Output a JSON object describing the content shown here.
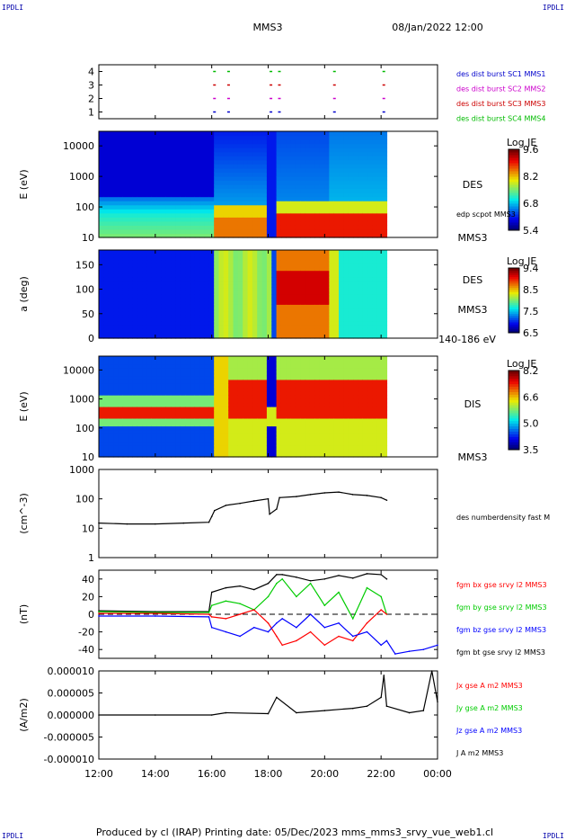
{
  "header": {
    "corner_left": "IPDLI",
    "corner_right": "IPDLI",
    "spacecraft": "MMS3",
    "date": "08/Jan/2022 12:00"
  },
  "footer": {
    "corner_left": "IPDLI",
    "corner_right": "IPDLI",
    "text": "Produced by cl (IRAP)   Printing date: 05/Dec/2023   mms_mms3_srvy_vue_web1.cl"
  },
  "chart_data": [
    {
      "type": "table",
      "name": "burst-availability",
      "ticks": [
        "1",
        "2",
        "3",
        "4"
      ],
      "legend": [
        {
          "text": "des dist burst SC1 MMS1",
          "color": "#0000cc"
        },
        {
          "text": "des dist burst SC2 MMS2",
          "color": "#cc00cc"
        },
        {
          "text": "des dist burst SC3 MMS3",
          "color": "#cc0000"
        },
        {
          "text": "des dist burst SC4 MMS4",
          "color": "#00bb00"
        }
      ],
      "burst_times_hours": [
        16.05,
        16.55,
        18.05,
        18.35,
        20.3,
        22.05
      ]
    },
    {
      "type": "heatmap",
      "name": "DES energy spectrogram",
      "ylabel": "E (eV)",
      "scale": "log",
      "ylim": [
        10,
        30000
      ],
      "yticks": [
        "10",
        "100",
        "1000",
        "10000"
      ],
      "yticks_values": [
        10,
        100,
        1000,
        10000
      ],
      "side_label": "DES",
      "side_label2": "edp scpot MMS3",
      "bottom_label": "MMS3",
      "colorbar": {
        "title": "Log JE",
        "ticks": [
          "9.6",
          "8.2",
          "6.8",
          "5.4"
        ],
        "range": [
          5.4,
          9.6
        ]
      }
    },
    {
      "type": "heatmap",
      "name": "DES pitch angle",
      "ylabel": "a (deg)",
      "ylim": [
        0,
        180
      ],
      "yticks": [
        "0",
        "50",
        "100",
        "150"
      ],
      "yticks_values": [
        0,
        50,
        100,
        150
      ],
      "side_label": "DES",
      "side_label2": "MMS3",
      "bottom_label": "140-186 eV",
      "colorbar": {
        "title": "Log JE",
        "ticks": [
          "9.4",
          "8.5",
          "7.5",
          "6.5"
        ],
        "range": [
          6.5,
          9.4
        ]
      }
    },
    {
      "type": "heatmap",
      "name": "DIS energy spectrogram",
      "ylabel": "E (eV)",
      "scale": "log",
      "ylim": [
        10,
        30000
      ],
      "yticks": [
        "10",
        "100",
        "1000",
        "10000"
      ],
      "yticks_values": [
        10,
        100,
        1000,
        10000
      ],
      "side_label": "DIS",
      "bottom_label": "MMS3",
      "colorbar": {
        "title": "Log JE",
        "ticks": [
          "8.2",
          "6.6",
          "5.0",
          "3.5"
        ],
        "range": [
          3.5,
          8.2
        ]
      }
    },
    {
      "type": "line",
      "name": "density",
      "ylabel": "(cm^-3)",
      "scale": "log",
      "ylim": [
        1,
        1000
      ],
      "yticks": [
        "1",
        "10",
        "100",
        "1000"
      ],
      "yticks_values": [
        1,
        10,
        100,
        1000
      ],
      "legend": [
        {
          "text": "des numberdensity fast M",
          "color": "#000000"
        }
      ],
      "x_hours": [
        12,
        13,
        14,
        15,
        15.9,
        16.0,
        16.1,
        16.5,
        17,
        17.5,
        18.0,
        18.05,
        18.3,
        18.4,
        19,
        19.5,
        20,
        20.5,
        21,
        21.5,
        22,
        22.2
      ],
      "y": [
        15,
        14,
        14,
        15,
        16,
        25,
        40,
        60,
        70,
        85,
        100,
        30,
        45,
        110,
        120,
        140,
        160,
        170,
        140,
        130,
        110,
        90
      ]
    },
    {
      "type": "line",
      "name": "magnetic field",
      "ylabel": "(nT)",
      "ylim": [
        -50,
        50
      ],
      "yticks": [
        "-40",
        "-20",
        "0",
        "20",
        "40"
      ],
      "yticks_values": [
        -40,
        -20,
        0,
        20,
        40
      ],
      "legend": [
        {
          "text": "fgm bx gse srvy l2 MMS3",
          "color": "#ff0000"
        },
        {
          "text": "fgm by gse srvy l2 MMS3",
          "color": "#00cc00"
        },
        {
          "text": "fgm bz gse srvy l2 MMS3",
          "color": "#0000ff"
        },
        {
          "text": "fgm bt gse srvy l2 MMS3",
          "color": "#000000"
        }
      ],
      "series": [
        {
          "color": "#000000",
          "x_hours": [
            12,
            14,
            15.9,
            16.0,
            16.5,
            17,
            17.5,
            18,
            18.3,
            18.5,
            19,
            19.5,
            20,
            20.5,
            21,
            21.5,
            22,
            22.2
          ],
          "y": [
            4,
            3,
            3,
            25,
            30,
            32,
            28,
            35,
            45,
            45,
            42,
            38,
            40,
            44,
            41,
            46,
            45,
            40
          ]
        },
        {
          "color": "#00cc00",
          "x_hours": [
            12,
            14,
            15.9,
            16.0,
            16.5,
            17,
            17.5,
            18,
            18.3,
            18.5,
            19,
            19.5,
            20,
            20.5,
            21,
            21.5,
            22,
            22.2
          ],
          "y": [
            3,
            2,
            2,
            10,
            15,
            12,
            5,
            20,
            35,
            40,
            20,
            35,
            10,
            25,
            -5,
            30,
            20,
            0
          ]
        },
        {
          "color": "#ff0000",
          "x_hours": [
            12,
            14,
            15.9,
            16.0,
            16.5,
            17,
            17.5,
            18,
            18.3,
            18.5,
            19,
            19.5,
            20,
            20.5,
            21,
            21.5,
            22,
            22.2
          ],
          "y": [
            1,
            1,
            0,
            -3,
            -5,
            0,
            5,
            -10,
            -25,
            -35,
            -30,
            -20,
            -35,
            -25,
            -30,
            -10,
            5,
            0
          ]
        },
        {
          "color": "#0000ff",
          "x_hours": [
            12,
            14,
            15.9,
            16.0,
            16.5,
            17,
            17.5,
            18,
            18.3,
            18.5,
            19,
            19.5,
            20,
            20.5,
            21,
            21.5,
            22,
            22.2,
            22.5,
            23,
            23.5,
            24
          ],
          "y": [
            -2,
            -2,
            -3,
            -15,
            -20,
            -25,
            -15,
            -20,
            -10,
            -5,
            -15,
            0,
            -15,
            -10,
            -25,
            -20,
            -35,
            -30,
            -45,
            -42,
            -40,
            -35
          ]
        }
      ]
    },
    {
      "type": "line",
      "name": "current density",
      "ylabel": "(A/m2)",
      "ylim": [
        -1e-05,
        1e-05
      ],
      "yticks": [
        "-0.000010",
        "-0.000005",
        "0.000000",
        "0.000005",
        "0.000010"
      ],
      "yticks_values": [
        -1e-05,
        -5e-06,
        0,
        5e-06,
        1e-05
      ],
      "legend": [
        {
          "text": "Jx gse A m2 MMS3",
          "color": "#ff0000"
        },
        {
          "text": "Jy gse A m2 MMS3",
          "color": "#00cc00"
        },
        {
          "text": "Jz gse A m2 MMS3",
          "color": "#0000ff"
        },
        {
          "text": "J A m2 MMS3",
          "color": "#000000"
        }
      ],
      "x_hours": [
        12,
        14,
        16,
        16.5,
        18,
        18.3,
        19,
        20,
        21,
        21.5,
        22,
        22.1,
        22.2,
        23,
        23.5,
        23.8,
        24
      ],
      "y": [
        0,
        0,
        0,
        5e-07,
        3e-07,
        4e-06,
        5e-07,
        1e-06,
        1.5e-06,
        2e-06,
        4e-06,
        9e-06,
        2e-06,
        5e-07,
        1e-06,
        1e-05,
        3e-06
      ]
    }
  ],
  "xaxis": {
    "ticks": [
      "12:00",
      "14:00",
      "16:00",
      "18:00",
      "20:00",
      "22:00",
      "00:00"
    ],
    "tick_hours": [
      12,
      14,
      16,
      18,
      20,
      22,
      24
    ],
    "range": [
      12,
      24
    ]
  }
}
